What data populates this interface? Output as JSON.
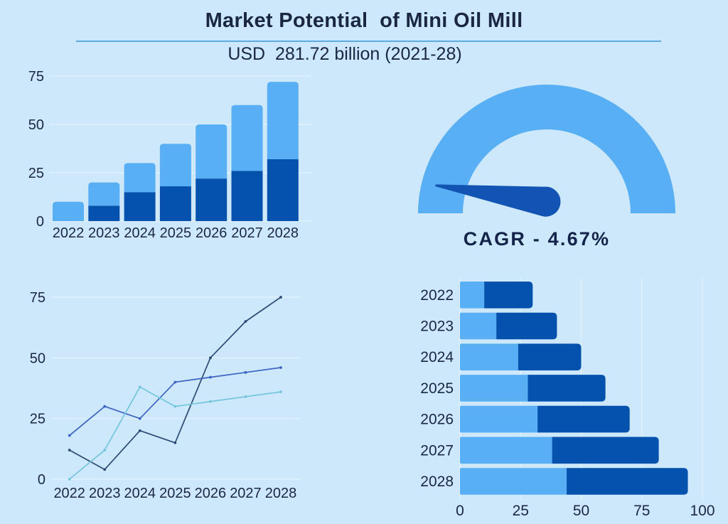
{
  "header": {
    "title": "Market Potential  of Mini Oil Mill",
    "subtitle": "USD  281.72 billion (2021-28)"
  },
  "colors": {
    "background": "#CCE8FA",
    "light_blue": "#58AFF4",
    "dark_blue": "#0551AE",
    "needle_blue": "#1254B4",
    "text_navy": "#1B2742",
    "gridline": "#E2F1FC",
    "underline": "#5FA9DD",
    "line_navy": "#2B4A76",
    "line_royal": "#3D63C3",
    "line_cyan": "#74C6DD"
  },
  "chart_data": [
    {
      "id": "market-size-stacked-columns",
      "type": "bar",
      "stacked": true,
      "orientation": "vertical",
      "categories": [
        "2022",
        "2023",
        "2024",
        "2025",
        "2026",
        "2027",
        "2028"
      ],
      "series": [
        {
          "name": "dark-blue-bottom",
          "color_key": "dark_blue",
          "values": [
            0,
            8,
            15,
            18,
            22,
            26,
            32
          ]
        },
        {
          "name": "light-blue-top",
          "color_key": "light_blue",
          "values": [
            10,
            12,
            15,
            22,
            28,
            34,
            40
          ]
        }
      ],
      "totals": [
        10,
        20,
        30,
        40,
        50,
        60,
        72
      ],
      "ylim": [
        0,
        75
      ],
      "yticks": [
        0,
        25,
        50,
        75
      ],
      "grid": true,
      "legend": false
    },
    {
      "id": "cagr-gauge",
      "type": "gauge",
      "value": 4.67,
      "min": 0,
      "max": 100,
      "label": "CAGR - 4.67%"
    },
    {
      "id": "trend-lines",
      "type": "line",
      "x": [
        "2022",
        "2023",
        "2024",
        "2025",
        "2026",
        "2027",
        "2028"
      ],
      "series": [
        {
          "name": "navy-line",
          "color_key": "line_navy",
          "values": [
            12,
            4,
            20,
            15,
            50,
            65,
            75
          ]
        },
        {
          "name": "royal-blue-line",
          "color_key": "line_royal",
          "values": [
            18,
            30,
            25,
            40,
            42,
            44,
            46
          ]
        },
        {
          "name": "cyan-line",
          "color_key": "line_cyan",
          "values": [
            0,
            12,
            38,
            30,
            32,
            34,
            36
          ]
        }
      ],
      "ylim": [
        0,
        75
      ],
      "yticks": [
        0,
        25,
        50,
        75
      ],
      "grid": true,
      "legend": false
    },
    {
      "id": "market-size-horizontal-stacked-bars",
      "type": "bar",
      "stacked": true,
      "orientation": "horizontal",
      "categories": [
        "2022",
        "2023",
        "2024",
        "2025",
        "2026",
        "2027",
        "2028"
      ],
      "series": [
        {
          "name": "light-blue-left",
          "color_key": "light_blue",
          "values": [
            10,
            15,
            24,
            28,
            32,
            38,
            44
          ]
        },
        {
          "name": "dark-blue-right",
          "color_key": "dark_blue",
          "values": [
            20,
            25,
            26,
            32,
            38,
            44,
            50
          ]
        }
      ],
      "totals": [
        30,
        40,
        50,
        60,
        70,
        82,
        94
      ],
      "xlim": [
        0,
        100
      ],
      "xticks": [
        0,
        25,
        50,
        75,
        100
      ],
      "grid": true,
      "legend": false
    }
  ]
}
